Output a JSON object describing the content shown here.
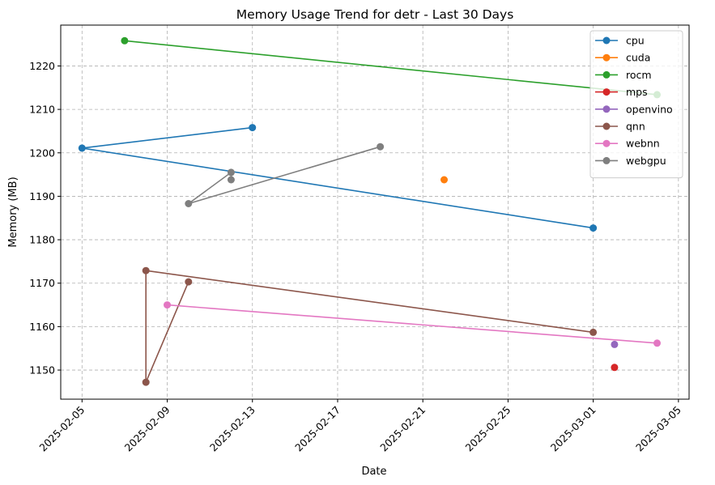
{
  "chart_data": {
    "type": "line",
    "title": "Memory Usage Trend for detr - Last 30 Days",
    "xlabel": "Date",
    "ylabel": "Memory (MB)",
    "x_is_date": true,
    "xlim": [
      "2025-02-04T00:00",
      "2025-03-05T12:00"
    ],
    "ylim": [
      1143.3,
      1229.4
    ],
    "xticks": [
      "2025-02-05",
      "2025-02-09",
      "2025-02-13",
      "2025-02-17",
      "2025-02-21",
      "2025-02-25",
      "2025-03-01",
      "2025-03-05"
    ],
    "yticks": [
      1150,
      1160,
      1170,
      1180,
      1190,
      1200,
      1210,
      1220
    ],
    "grid": true,
    "legend_position": "top-right",
    "marker": "circle",
    "series": [
      {
        "name": "cpu",
        "color": "#1f77b4",
        "points": [
          [
            "2025-02-13",
            1205.8
          ],
          [
            "2025-02-05",
            1201.1
          ],
          [
            "2025-03-01",
            1182.7
          ]
        ]
      },
      {
        "name": "cuda",
        "color": "#ff7f0e",
        "points": [
          [
            "2025-02-22",
            1193.8
          ]
        ]
      },
      {
        "name": "rocm",
        "color": "#2ca02c",
        "points": [
          [
            "2025-02-07",
            1225.8
          ],
          [
            "2025-03-04",
            1213.4
          ]
        ]
      },
      {
        "name": "mps",
        "color": "#d62728",
        "points": [
          [
            "2025-03-02",
            1150.6
          ]
        ]
      },
      {
        "name": "openvino",
        "color": "#9467bd",
        "points": [
          [
            "2025-03-02",
            1155.9
          ]
        ]
      },
      {
        "name": "qnn",
        "color": "#8c564b",
        "points": [
          [
            "2025-02-10",
            1170.3
          ],
          [
            "2025-02-08",
            1147.2
          ],
          [
            "2025-02-08",
            1172.9
          ],
          [
            "2025-02-29",
            1158.7
          ]
        ]
      },
      {
        "name": "webnn",
        "color": "#e377c2",
        "points": [
          [
            "2025-02-09",
            1165.0
          ],
          [
            "2025-03-04",
            1156.2
          ]
        ]
      },
      {
        "name": "webgpu",
        "color": "#7f7f7f",
        "points": [
          [
            "2025-02-12",
            1193.8
          ],
          [
            "2025-02-12",
            1195.5
          ],
          [
            "2025-02-10",
            1188.3
          ],
          [
            "2025-02-19",
            1201.4
          ]
        ]
      }
    ]
  }
}
